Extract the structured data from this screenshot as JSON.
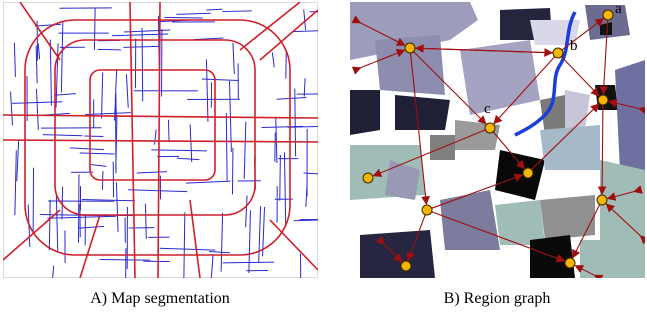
{
  "panels": [
    {
      "caption": "A) Map segmentation"
    },
    {
      "caption": "B) Region graph",
      "node_labels": [
        "a",
        "b",
        "c"
      ]
    }
  ]
}
